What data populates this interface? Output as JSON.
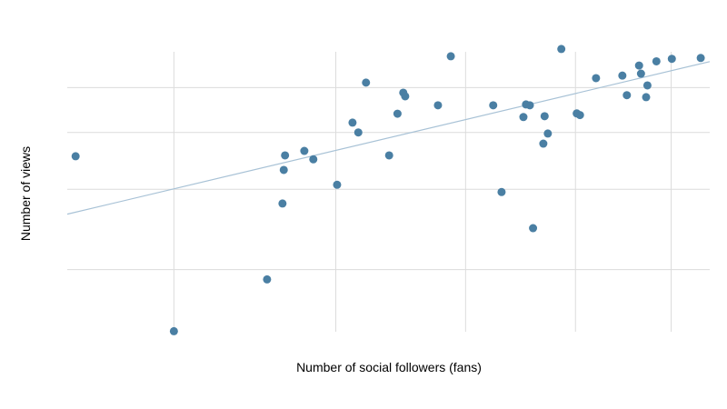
{
  "chart_data": {
    "type": "scatter",
    "title": "",
    "xlabel": "Number of social followers (fans)",
    "ylabel": "Number of views",
    "xlim": [
      0,
      1000
    ],
    "ylim": [
      0,
      1000
    ],
    "grid": true,
    "legend": "none",
    "x_gridlines": [
      166,
      418,
      620,
      791,
      940
    ],
    "y_gridlines": [
      222,
      509,
      712,
      872
    ],
    "point_color": "#4a7fa3",
    "trend_color": "#a8c2d6",
    "points": [
      {
        "x": 13,
        "y": 627
      },
      {
        "x": 166,
        "y": 2
      },
      {
        "x": 311,
        "y": 187
      },
      {
        "x": 335,
        "y": 458
      },
      {
        "x": 337,
        "y": 578
      },
      {
        "x": 339,
        "y": 630
      },
      {
        "x": 369,
        "y": 646
      },
      {
        "x": 383,
        "y": 616
      },
      {
        "x": 420,
        "y": 525
      },
      {
        "x": 444,
        "y": 747
      },
      {
        "x": 453,
        "y": 712
      },
      {
        "x": 465,
        "y": 890
      },
      {
        "x": 501,
        "y": 630
      },
      {
        "x": 514,
        "y": 779
      },
      {
        "x": 523,
        "y": 854
      },
      {
        "x": 526,
        "y": 841
      },
      {
        "x": 577,
        "y": 809
      },
      {
        "x": 597,
        "y": 984
      },
      {
        "x": 663,
        "y": 809
      },
      {
        "x": 676,
        "y": 499
      },
      {
        "x": 710,
        "y": 767
      },
      {
        "x": 714,
        "y": 812
      },
      {
        "x": 720,
        "y": 809
      },
      {
        "x": 725,
        "y": 370
      },
      {
        "x": 741,
        "y": 672
      },
      {
        "x": 743,
        "y": 770
      },
      {
        "x": 748,
        "y": 708
      },
      {
        "x": 769,
        "y": 1010
      },
      {
        "x": 793,
        "y": 780
      },
      {
        "x": 798,
        "y": 774
      },
      {
        "x": 823,
        "y": 906
      },
      {
        "x": 864,
        "y": 915
      },
      {
        "x": 871,
        "y": 845
      },
      {
        "x": 890,
        "y": 951
      },
      {
        "x": 893,
        "y": 922
      },
      {
        "x": 901,
        "y": 838
      },
      {
        "x": 903,
        "y": 880
      },
      {
        "x": 917,
        "y": 966
      },
      {
        "x": 941,
        "y": 975
      },
      {
        "x": 986,
        "y": 978
      }
    ],
    "trend_line": {
      "x": [
        0,
        1000
      ],
      "y": [
        420,
        965
      ]
    }
  }
}
